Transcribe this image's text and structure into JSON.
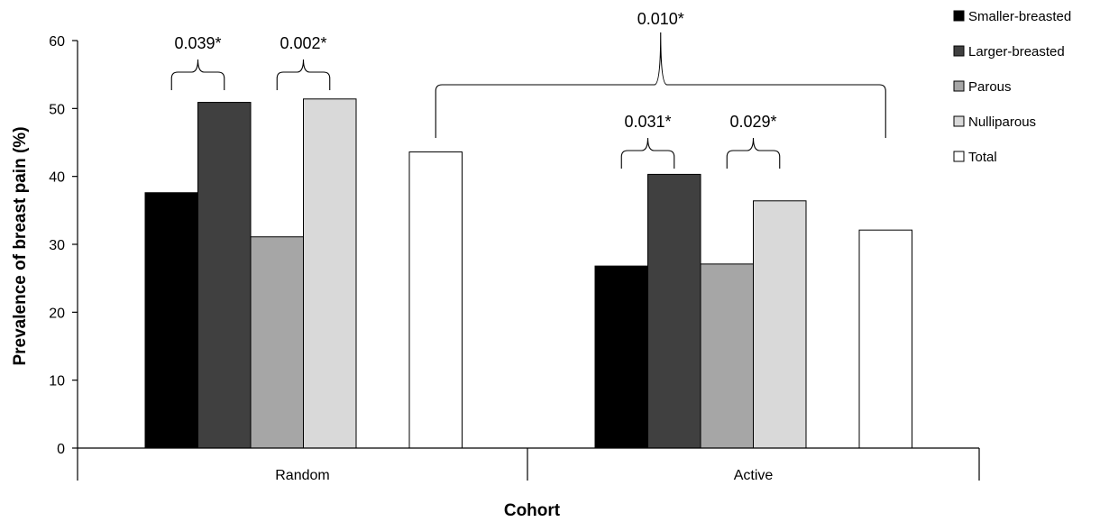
{
  "chart_data": {
    "type": "bar",
    "title": "",
    "xlabel": "Cohort",
    "ylabel": "Prevalence of breast pain (%)",
    "ylim": [
      0,
      60
    ],
    "yticks": [
      0,
      10,
      20,
      30,
      40,
      50,
      60
    ],
    "grid": false,
    "legend_position": "top-right",
    "categories": [
      "Random",
      "Active"
    ],
    "series": [
      {
        "name": "Smaller-breasted",
        "color": "#000000",
        "values": [
          37.6,
          26.8
        ]
      },
      {
        "name": "Larger-breasted",
        "color": "#404040",
        "values": [
          50.9,
          40.3
        ]
      },
      {
        "name": "Parous",
        "color": "#a6a6a6",
        "values": [
          31.1,
          27.1
        ]
      },
      {
        "name": "Nulliparous",
        "color": "#d9d9d9",
        "values": [
          51.4,
          36.4
        ]
      },
      {
        "name": "Total",
        "color": "#ffffff",
        "values": [
          43.6,
          32.1
        ]
      }
    ],
    "annotations": [
      {
        "text": "0.039*",
        "category": "Random",
        "series": [
          "Smaller-breasted",
          "Larger-breasted"
        ]
      },
      {
        "text": "0.002*",
        "category": "Random",
        "series": [
          "Parous",
          "Nulliparous"
        ]
      },
      {
        "text": "0.031*",
        "category": "Active",
        "series": [
          "Smaller-breasted",
          "Larger-breasted"
        ]
      },
      {
        "text": "0.029*",
        "category": "Active",
        "series": [
          "Parous",
          "Nulliparous"
        ]
      },
      {
        "text": "0.010*",
        "category": "Random vs Active",
        "series": [
          "Total"
        ]
      }
    ]
  }
}
